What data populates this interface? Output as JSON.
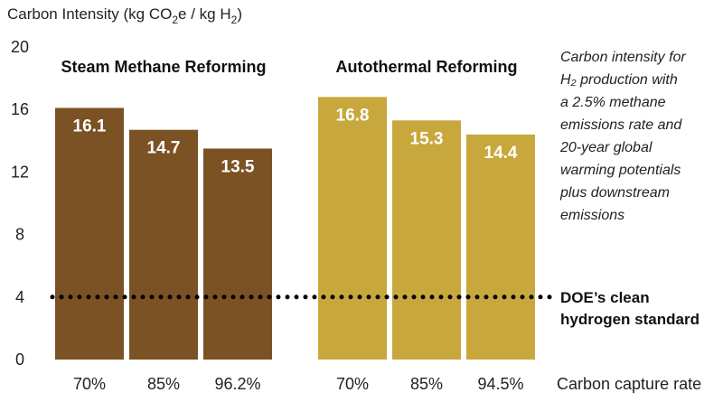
{
  "chart_data": {
    "type": "bar",
    "title": "",
    "ylabel_parts": [
      "Carbon Intensity (kg CO",
      "2",
      "e / kg H",
      "2",
      ")"
    ],
    "xlabel": "Carbon capture rate",
    "ylim": [
      0,
      20
    ],
    "yticks": [
      0,
      4,
      8,
      12,
      16,
      20
    ],
    "groups": [
      {
        "name": "Steam Methane Reforming",
        "color": "#7b5223",
        "categories": [
          "70%",
          "85%",
          "96.2%"
        ],
        "values": [
          16.1,
          14.7,
          13.5
        ],
        "value_labels": [
          "16.1",
          "14.7",
          "13.5"
        ]
      },
      {
        "name": "Autothermal Reforming",
        "color": "#c8a83c",
        "categories": [
          "70%",
          "85%",
          "94.5%"
        ],
        "values": [
          16.8,
          15.3,
          14.4
        ],
        "value_labels": [
          "16.8",
          "15.3",
          "14.4"
        ]
      }
    ],
    "reference_line": {
      "value": 4,
      "label_lines": [
        "DOE’s clean",
        "hydrogen standard"
      ],
      "style": "dotted"
    },
    "annotation_lines": [
      "Carbon intensity for",
      "H₂ production with",
      "a 2.5% methane",
      "emissions rate and",
      "20-year global",
      "warming potentials",
      "plus downstream",
      "emissions"
    ],
    "grid": false,
    "legend": "none"
  }
}
